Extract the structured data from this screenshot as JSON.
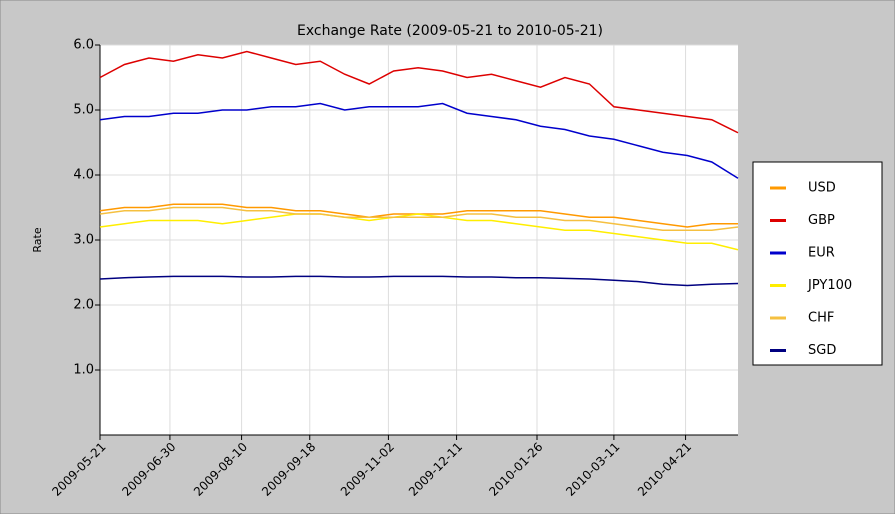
{
  "chart_data": {
    "type": "line",
    "title": "Exchange Rate (2009-05-21 to 2010-05-21)",
    "y_label": "Rate",
    "x": [
      "2009-05-21",
      "2009-06-04",
      "2009-06-18",
      "2009-07-02",
      "2009-07-16",
      "2009-07-30",
      "2009-08-13",
      "2009-08-27",
      "2009-09-10",
      "2009-09-24",
      "2009-10-08",
      "2009-10-22",
      "2009-11-05",
      "2009-11-19",
      "2009-12-03",
      "2009-12-17",
      "2009-12-31",
      "2010-01-14",
      "2010-01-28",
      "2010-02-11",
      "2010-02-25",
      "2010-03-11",
      "2010-03-25",
      "2010-04-08",
      "2010-04-22",
      "2010-05-06",
      "2010-05-21"
    ],
    "xlim": [
      "2009-05-21",
      "2010-05-21"
    ],
    "xticks": [
      "2009-05-21",
      "2009-06-30",
      "2009-08-10",
      "2009-09-18",
      "2009-11-02",
      "2009-12-11",
      "2010-01-26",
      "2010-03-11",
      "2010-04-21"
    ],
    "ylim": [
      0,
      6
    ],
    "yticks": [
      {
        "value": 1,
        "label": "1.0"
      },
      {
        "value": 2,
        "label": "2.0"
      },
      {
        "value": 3,
        "label": "3.0"
      },
      {
        "value": 4,
        "label": "4.0"
      },
      {
        "value": 5,
        "label": "5.0"
      },
      {
        "value": 6,
        "label": "6.0"
      }
    ],
    "grid": true,
    "legend": "right",
    "series": [
      {
        "name": "USD",
        "color": "#ff9900",
        "values": [
          3.45,
          3.5,
          3.5,
          3.55,
          3.55,
          3.55,
          3.5,
          3.5,
          3.45,
          3.45,
          3.4,
          3.35,
          3.4,
          3.4,
          3.4,
          3.45,
          3.45,
          3.45,
          3.45,
          3.4,
          3.35,
          3.35,
          3.3,
          3.25,
          3.2,
          3.25,
          3.25
        ]
      },
      {
        "name": "GBP",
        "color": "#dd0000",
        "values": [
          5.5,
          5.7,
          5.8,
          5.75,
          5.85,
          5.8,
          5.9,
          5.8,
          5.7,
          5.75,
          5.55,
          5.4,
          5.6,
          5.65,
          5.6,
          5.5,
          5.55,
          5.45,
          5.35,
          5.5,
          5.4,
          5.05,
          5.0,
          4.95,
          4.9,
          4.85,
          4.65
        ]
      },
      {
        "name": "EUR",
        "color": "#0000cc",
        "values": [
          4.85,
          4.9,
          4.9,
          4.95,
          4.95,
          5.0,
          5.0,
          5.05,
          5.05,
          5.1,
          5.0,
          5.05,
          5.05,
          5.05,
          5.1,
          4.95,
          4.9,
          4.85,
          4.75,
          4.7,
          4.6,
          4.55,
          4.45,
          4.35,
          4.3,
          4.2,
          3.95
        ]
      },
      {
        "name": "JPY100",
        "color": "#ffee00",
        "values": [
          3.2,
          3.25,
          3.3,
          3.3,
          3.3,
          3.25,
          3.3,
          3.35,
          3.4,
          3.4,
          3.35,
          3.3,
          3.35,
          3.4,
          3.35,
          3.3,
          3.3,
          3.25,
          3.2,
          3.15,
          3.15,
          3.1,
          3.05,
          3.0,
          2.95,
          2.95,
          2.85
        ]
      },
      {
        "name": "CHF",
        "color": "#f5c040",
        "values": [
          3.4,
          3.45,
          3.45,
          3.5,
          3.5,
          3.5,
          3.45,
          3.45,
          3.4,
          3.4,
          3.35,
          3.35,
          3.35,
          3.35,
          3.35,
          3.4,
          3.4,
          3.35,
          3.35,
          3.3,
          3.3,
          3.25,
          3.2,
          3.15,
          3.15,
          3.15,
          3.2
        ]
      },
      {
        "name": "SGD",
        "color": "#000080",
        "values": [
          2.4,
          2.42,
          2.43,
          2.44,
          2.44,
          2.44,
          2.43,
          2.43,
          2.44,
          2.44,
          2.43,
          2.43,
          2.44,
          2.44,
          2.44,
          2.43,
          2.43,
          2.42,
          2.42,
          2.41,
          2.4,
          2.38,
          2.36,
          2.32,
          2.3,
          2.32,
          2.33
        ]
      }
    ]
  }
}
